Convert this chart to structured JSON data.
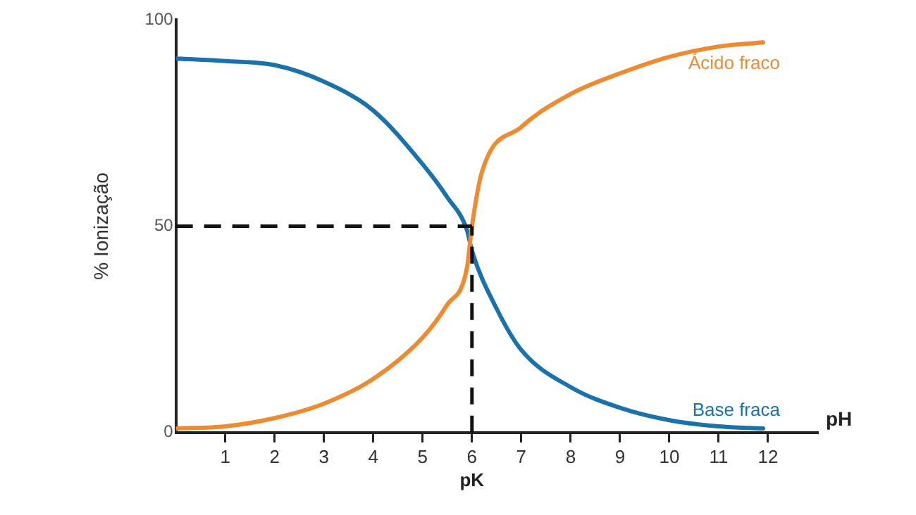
{
  "chart_data": {
    "type": "line",
    "xlabel": "pH",
    "ylabel": "% Ionização",
    "xlim": [
      0,
      13
    ],
    "xticks": [
      1,
      2,
      3,
      4,
      5,
      6,
      7,
      8,
      9,
      10,
      11,
      12
    ],
    "ylim": [
      0,
      100
    ],
    "yticks": [
      0,
      50,
      100
    ],
    "grid": false,
    "legend": false,
    "marker": "none",
    "line_style": "solid",
    "ref_lines": [
      {
        "axis": "y",
        "value": 50,
        "label": null,
        "color": "#111111",
        "line_style": "dashed"
      },
      {
        "axis": "x",
        "value": 6,
        "label": "pK",
        "color": "#111111",
        "line_style": "dashed"
      }
    ],
    "series": [
      {
        "name": "Ácido fraco",
        "color": "#ee8a30",
        "x": [
          0,
          1,
          2,
          3,
          4,
          5,
          5.5,
          5.9,
          6,
          6.2,
          7,
          8,
          9,
          10,
          11,
          11.9
        ],
        "values": [
          1,
          1.5,
          3.5,
          7,
          13,
          23,
          31,
          40,
          50,
          63,
          74,
          82,
          87,
          91,
          93.5,
          94.5
        ]
      },
      {
        "name": "Base fraca",
        "color": "#1a72ad",
        "x": [
          0,
          1,
          2,
          3,
          4,
          5,
          5.5,
          5.9,
          6,
          6.5,
          7,
          8,
          9,
          10,
          11,
          11.9
        ],
        "values": [
          90.6,
          90,
          89,
          85,
          78,
          65,
          57,
          49,
          44,
          30,
          20,
          11,
          6,
          3,
          1.5,
          1
        ]
      }
    ]
  }
}
